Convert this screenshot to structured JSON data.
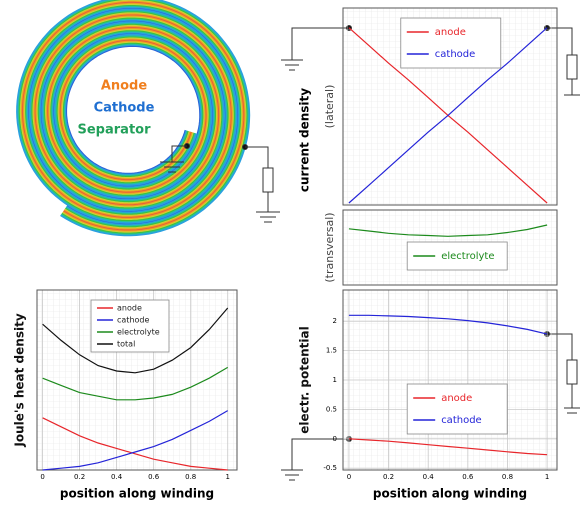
{
  "diagram": {
    "labels": [
      {
        "text": "Anode",
        "color": "#f07f1e"
      },
      {
        "text": "Cathode",
        "color": "#1f6fd1"
      },
      {
        "text": "Separator",
        "color": "#22a05a"
      }
    ]
  },
  "chart_data": [
    {
      "type": "line",
      "group_ylabel": "current density",
      "ylabel": "(lateral)",
      "legend": "upper center",
      "x": [
        0,
        0.1,
        0.2,
        0.3,
        0.4,
        0.5,
        0.6,
        0.7,
        0.8,
        0.9,
        1
      ],
      "xlim": [
        -0.03,
        1.05
      ],
      "ylim": [
        0,
        1
      ],
      "grid": true,
      "series": [
        {
          "name": "anode",
          "color": "#e8262b",
          "values": [
            0.9,
            0.81,
            0.72,
            0.635,
            0.545,
            0.455,
            0.37,
            0.28,
            0.19,
            0.1,
            0.01
          ]
        },
        {
          "name": "cathode",
          "color": "#2424d8",
          "values": [
            0.01,
            0.1,
            0.19,
            0.28,
            0.37,
            0.455,
            0.545,
            0.635,
            0.72,
            0.81,
            0.9
          ]
        }
      ]
    },
    {
      "type": "line",
      "ylabel": "(transversal)",
      "legend": "lower center",
      "x": [
        0,
        0.1,
        0.2,
        0.3,
        0.4,
        0.5,
        0.6,
        0.7,
        0.8,
        0.9,
        1
      ],
      "xlim": [
        -0.03,
        1.05
      ],
      "ylim": [
        0,
        1
      ],
      "grid": true,
      "series": [
        {
          "name": "electrolyte",
          "color": "#1c8a1c",
          "values": [
            0.75,
            0.72,
            0.69,
            0.67,
            0.66,
            0.65,
            0.66,
            0.67,
            0.7,
            0.74,
            0.8
          ]
        }
      ]
    },
    {
      "type": "line",
      "ylabel": "Joule's heat density",
      "xlabel": "position along winding",
      "legend": "upper center",
      "x": [
        0,
        0.1,
        0.2,
        0.3,
        0.4,
        0.5,
        0.6,
        0.7,
        0.8,
        0.9,
        1
      ],
      "xlim": [
        -0.03,
        1.05
      ],
      "ylim": [
        0,
        1
      ],
      "xticks": [
        0,
        0.2,
        0.4,
        0.6,
        0.8,
        1
      ],
      "grid": true,
      "series": [
        {
          "name": "anode",
          "color": "#e8262b",
          "values": [
            0.29,
            0.24,
            0.19,
            0.15,
            0.12,
            0.09,
            0.06,
            0.04,
            0.02,
            0.01,
            0
          ]
        },
        {
          "name": "cathode",
          "color": "#2424d8",
          "values": [
            0,
            0.01,
            0.02,
            0.04,
            0.07,
            0.1,
            0.13,
            0.17,
            0.22,
            0.27,
            0.33
          ]
        },
        {
          "name": "electrolyte",
          "color": "#1c8a1c",
          "values": [
            0.51,
            0.47,
            0.43,
            0.41,
            0.39,
            0.39,
            0.4,
            0.42,
            0.46,
            0.51,
            0.57
          ]
        },
        {
          "name": "total",
          "color": "#111111",
          "values": [
            0.81,
            0.72,
            0.64,
            0.58,
            0.55,
            0.54,
            0.56,
            0.61,
            0.68,
            0.78,
            0.9
          ]
        }
      ]
    },
    {
      "type": "line",
      "ylabel": "electr. potential",
      "xlabel": "position along winding",
      "legend": "lower center",
      "x": [
        0,
        0.1,
        0.2,
        0.3,
        0.4,
        0.5,
        0.6,
        0.7,
        0.8,
        0.9,
        1
      ],
      "xlim": [
        -0.03,
        1.05
      ],
      "ylim": [
        -0.53,
        2.53
      ],
      "xticks": [
        0,
        0.2,
        0.4,
        0.6,
        0.8,
        1
      ],
      "yticks": [
        -0.5,
        0,
        0.5,
        1,
        1.5,
        2
      ],
      "grid": true,
      "series": [
        {
          "name": "anode",
          "color": "#e8262b",
          "values": [
            0,
            -0.02,
            -0.04,
            -0.07,
            -0.1,
            -0.13,
            -0.16,
            -0.19,
            -0.22,
            -0.25,
            -0.27
          ]
        },
        {
          "name": "cathode",
          "color": "#2424d8",
          "values": [
            2.1,
            2.1,
            2.09,
            2.08,
            2.06,
            2.04,
            2.01,
            1.97,
            1.92,
            1.86,
            1.78
          ]
        }
      ]
    }
  ]
}
